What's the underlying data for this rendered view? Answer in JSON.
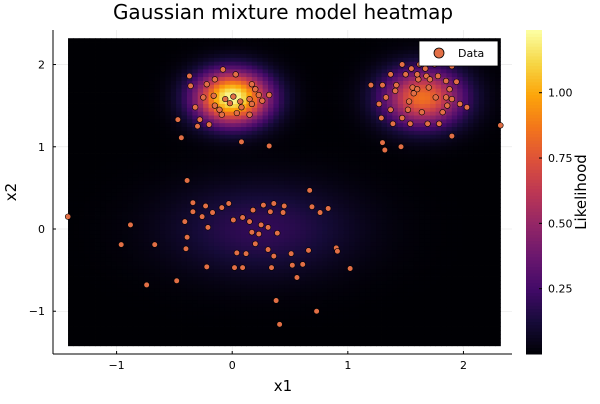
{
  "chart_data": {
    "type": "heatmap",
    "title": "Gaussian mixture model heatmap",
    "xlabel": "x1",
    "ylabel": "x2",
    "xlim": [
      -1.55,
      2.42
    ],
    "ylim": [
      -1.52,
      2.42
    ],
    "heat_extent": {
      "x": [
        -1.42,
        2.32
      ],
      "y": [
        -1.42,
        2.32
      ]
    },
    "xticks": [
      {
        "value": -1,
        "label": "−1"
      },
      {
        "value": 0,
        "label": "0"
      },
      {
        "value": 1,
        "label": "1"
      },
      {
        "value": 2,
        "label": "2"
      }
    ],
    "yticks": [
      {
        "value": -1,
        "label": "−1"
      },
      {
        "value": 0,
        "label": "0"
      },
      {
        "value": 1,
        "label": "1"
      },
      {
        "value": 2,
        "label": "2"
      }
    ],
    "grid": true,
    "colormap": "inferno",
    "colorbar": {
      "label": "Likelihood",
      "range": [
        0.0,
        1.24
      ],
      "ticks": [
        {
          "value": 0.25,
          "label": "0.25"
        },
        {
          "value": 0.5,
          "label": "0.50"
        },
        {
          "value": 0.75,
          "label": "0.75"
        },
        {
          "value": 1.0,
          "label": "1.00"
        }
      ]
    },
    "components": [
      {
        "mean": [
          0.0,
          1.6
        ],
        "sigma": [
          0.22,
          0.22
        ],
        "peak": 1.24
      },
      {
        "mean": [
          1.65,
          1.6
        ],
        "sigma": [
          0.24,
          0.24
        ],
        "peak": 0.85
      },
      {
        "mean": [
          0.25,
          0.0
        ],
        "sigma": [
          0.55,
          0.38
        ],
        "peak": 0.2
      }
    ],
    "legend": {
      "position": "top-right",
      "entries": [
        "Data"
      ]
    },
    "series": [
      {
        "name": "Data",
        "type": "scatter",
        "color": "#e26f46",
        "points": [
          [
            -0.37,
            1.86
          ],
          [
            -0.15,
            1.82
          ],
          [
            -0.08,
            1.94
          ],
          [
            0.03,
            1.88
          ],
          [
            -0.22,
            1.76
          ],
          [
            0.17,
            1.76
          ],
          [
            -0.36,
            1.74
          ],
          [
            -0.25,
            1.6
          ],
          [
            -0.16,
            1.62
          ],
          [
            -0.06,
            1.58
          ],
          [
            0.01,
            1.61
          ],
          [
            0.07,
            1.55
          ],
          [
            0.15,
            1.58
          ],
          [
            0.23,
            1.63
          ],
          [
            0.32,
            1.63
          ],
          [
            -0.32,
            1.48
          ],
          [
            -0.15,
            1.5
          ],
          [
            -0.02,
            1.53
          ],
          [
            0.08,
            1.48
          ],
          [
            0.17,
            1.52
          ],
          [
            0.26,
            1.56
          ],
          [
            -0.09,
            1.39
          ],
          [
            0.04,
            1.41
          ],
          [
            0.15,
            1.39
          ],
          [
            -0.28,
            1.33
          ],
          [
            -0.2,
            1.27
          ],
          [
            -0.3,
            1.25
          ],
          [
            -0.47,
            1.33
          ],
          [
            -0.44,
            1.11
          ],
          [
            0.08,
            1.06
          ],
          [
            0.32,
            1.01
          ],
          [
            -0.11,
            1.45
          ],
          [
            0.2,
            1.7
          ],
          [
            1.47,
            2.0
          ],
          [
            1.55,
            1.95
          ],
          [
            1.37,
            1.88
          ],
          [
            1.5,
            1.88
          ],
          [
            1.68,
            1.86
          ],
          [
            1.78,
            1.86
          ],
          [
            1.61,
            1.82
          ],
          [
            1.71,
            1.82
          ],
          [
            1.85,
            1.8
          ],
          [
            1.94,
            1.79
          ],
          [
            1.6,
            1.88
          ],
          [
            1.62,
            2.0
          ],
          [
            1.75,
            2.0
          ],
          [
            1.9,
            1.98
          ],
          [
            1.42,
            1.75
          ],
          [
            1.56,
            1.72
          ],
          [
            1.7,
            1.72
          ],
          [
            1.88,
            1.7
          ],
          [
            1.2,
            1.75
          ],
          [
            1.3,
            1.75
          ],
          [
            1.41,
            1.68
          ],
          [
            1.6,
            1.7
          ],
          [
            1.9,
            1.58
          ],
          [
            1.33,
            1.6
          ],
          [
            1.53,
            1.55
          ],
          [
            1.76,
            1.6
          ],
          [
            1.86,
            1.5
          ],
          [
            1.97,
            1.52
          ],
          [
            2.03,
            1.48
          ],
          [
            1.27,
            1.52
          ],
          [
            1.37,
            1.45
          ],
          [
            1.52,
            1.45
          ],
          [
            1.64,
            1.42
          ],
          [
            1.82,
            1.42
          ],
          [
            1.29,
            1.35
          ],
          [
            1.47,
            1.35
          ],
          [
            1.69,
            1.28
          ],
          [
            1.79,
            1.28
          ],
          [
            1.39,
            1.28
          ],
          [
            1.54,
            1.28
          ],
          [
            1.3,
            1.05
          ],
          [
            1.32,
            0.96
          ],
          [
            1.46,
            1.0
          ],
          [
            1.9,
            1.13
          ],
          [
            2.32,
            1.26
          ],
          [
            1.57,
            1.65
          ],
          [
            1.85,
            1.6
          ],
          [
            1.67,
            1.95
          ],
          [
            -1.42,
            0.15
          ],
          [
            -0.96,
            -0.19
          ],
          [
            -0.88,
            0.05
          ],
          [
            -0.67,
            -0.19
          ],
          [
            -0.48,
            -0.63
          ],
          [
            -0.74,
            -0.68
          ],
          [
            -0.41,
            0.09
          ],
          [
            -0.34,
            0.32
          ],
          [
            -0.34,
            0.21
          ],
          [
            -0.23,
            0.28
          ],
          [
            -0.17,
            0.2
          ],
          [
            -0.09,
            0.26
          ],
          [
            -0.39,
            -0.1
          ],
          [
            -0.4,
            -0.24
          ],
          [
            -0.22,
            -0.46
          ],
          [
            -0.26,
            0.15
          ],
          [
            -0.21,
            0.02
          ],
          [
            -0.03,
            0.31
          ],
          [
            0.01,
            0.11
          ],
          [
            0.09,
            0.14
          ],
          [
            0.18,
            0.23
          ],
          [
            0.27,
            0.29
          ],
          [
            0.33,
            0.21
          ],
          [
            0.36,
            0.31
          ],
          [
            0.44,
            0.2
          ],
          [
            0.25,
            0.05
          ],
          [
            0.31,
            0.02
          ],
          [
            0.39,
            -0.05
          ],
          [
            0.17,
            -0.04
          ],
          [
            0.23,
            -0.06
          ],
          [
            0.04,
            -0.29
          ],
          [
            0.12,
            -0.3
          ],
          [
            0.2,
            -0.18
          ],
          [
            0.31,
            -0.25
          ],
          [
            0.36,
            -0.33
          ],
          [
            0.51,
            -0.3
          ],
          [
            0.52,
            -0.44
          ],
          [
            0.56,
            -0.59
          ],
          [
            0.61,
            -0.43
          ],
          [
            0.66,
            -0.26
          ],
          [
            0.67,
            0.47
          ],
          [
            0.69,
            0.27
          ],
          [
            0.76,
            0.2
          ],
          [
            0.83,
            0.25
          ],
          [
            0.9,
            -0.23
          ],
          [
            0.91,
            -0.27
          ],
          [
            1.02,
            -0.48
          ],
          [
            0.73,
            -1.0
          ],
          [
            0.38,
            -0.87
          ],
          [
            0.41,
            -1.16
          ],
          [
            0.34,
            -0.47
          ],
          [
            0.02,
            -0.47
          ],
          [
            0.09,
            -0.47
          ],
          [
            -0.39,
            0.59
          ],
          [
            0.15,
            0.09
          ],
          [
            0.45,
            0.28
          ]
        ]
      }
    ]
  }
}
